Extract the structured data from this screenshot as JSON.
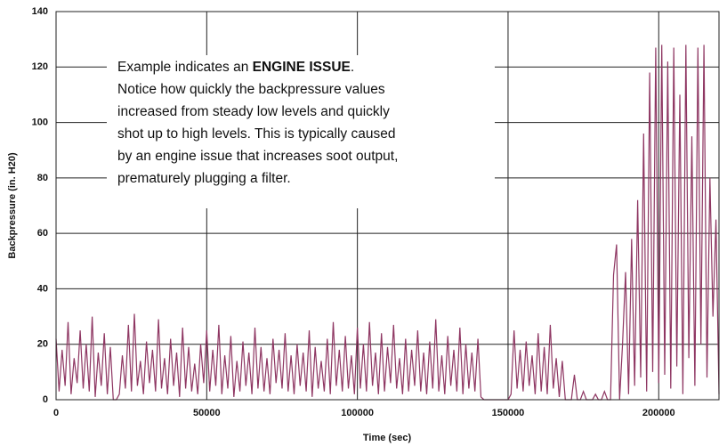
{
  "chart_data": {
    "type": "line",
    "x_label": "Time (sec)",
    "y_label": "Backpressure (in. H20)",
    "annotation": {
      "first_line": [
        "Example indicates an ",
        "ENGINE ISSUE",
        "."
      ],
      "lines": [
        "Notice how quickly the backpressure values",
        "increased from steady low levels and quickly",
        "shot up to high levels. This is typically caused",
        "by an engine issue that increases soot output,",
        "prematurely plugging a filter."
      ]
    },
    "color": "#8e3662",
    "xlim": [
      0,
      220000
    ],
    "ylim": [
      0,
      140
    ],
    "xticks": [
      0,
      50000,
      100000,
      150000,
      200000
    ],
    "yticks": [
      0,
      20,
      40,
      60,
      80,
      100,
      120,
      140
    ],
    "grid": true,
    "x": [
      0,
      1000,
      2000,
      3000,
      4000,
      5000,
      6000,
      7000,
      8000,
      9000,
      10000,
      11000,
      12000,
      13000,
      14000,
      15000,
      16000,
      17000,
      18000,
      19000,
      20000,
      21000,
      22000,
      23000,
      24000,
      25000,
      26000,
      27000,
      28000,
      29000,
      30000,
      31000,
      32000,
      33000,
      34000,
      35000,
      36000,
      37000,
      38000,
      39000,
      40000,
      41000,
      42000,
      43000,
      44000,
      45000,
      46000,
      47000,
      48000,
      49000,
      50000,
      51000,
      52000,
      53000,
      54000,
      55000,
      56000,
      57000,
      58000,
      59000,
      60000,
      61000,
      62000,
      63000,
      64000,
      65000,
      66000,
      67000,
      68000,
      69000,
      70000,
      71000,
      72000,
      73000,
      74000,
      75000,
      76000,
      77000,
      78000,
      79000,
      80000,
      81000,
      82000,
      83000,
      84000,
      85000,
      86000,
      87000,
      88000,
      89000,
      90000,
      91000,
      92000,
      93000,
      94000,
      95000,
      96000,
      97000,
      98000,
      99000,
      100000,
      101000,
      102000,
      103000,
      104000,
      105000,
      106000,
      107000,
      108000,
      109000,
      110000,
      111000,
      112000,
      113000,
      114000,
      115000,
      116000,
      117000,
      118000,
      119000,
      120000,
      121000,
      122000,
      123000,
      124000,
      125000,
      126000,
      127000,
      128000,
      129000,
      130000,
      131000,
      132000,
      133000,
      134000,
      135000,
      136000,
      137000,
      138000,
      139000,
      140000,
      141000,
      142000,
      143000,
      144000,
      145000,
      146000,
      147000,
      148000,
      149000,
      150000,
      151000,
      152000,
      153000,
      154000,
      155000,
      156000,
      157000,
      158000,
      159000,
      160000,
      161000,
      162000,
      163000,
      164000,
      165000,
      166000,
      167000,
      168000,
      169000,
      170000,
      171000,
      172000,
      173000,
      174000,
      175000,
      176000,
      177000,
      178000,
      179000,
      180000,
      181000,
      182000,
      183000,
      184000,
      185000,
      186000,
      187000,
      188000,
      189000,
      190000,
      191000,
      192000,
      193000,
      194000,
      195000,
      196000,
      197000,
      198000,
      199000,
      200000,
      201000,
      202000,
      203000,
      204000,
      205000,
      206000,
      207000,
      208000,
      209000,
      210000,
      211000,
      212000,
      213000,
      214000,
      215000,
      216000,
      217000,
      218000,
      219000,
      220000
    ],
    "values": [
      22,
      3,
      18,
      5,
      28,
      2,
      15,
      6,
      25,
      4,
      20,
      3,
      30,
      1,
      17,
      5,
      24,
      2,
      19,
      0,
      0,
      2,
      16,
      4,
      27,
      3,
      31,
      5,
      14,
      2,
      21,
      6,
      18,
      3,
      29,
      4,
      15,
      2,
      22,
      5,
      17,
      1,
      26,
      4,
      19,
      3,
      13,
      2,
      20,
      6,
      25,
      3,
      18,
      5,
      27,
      2,
      16,
      4,
      23,
      1,
      14,
      3,
      21,
      5,
      17,
      2,
      26,
      4,
      19,
      3,
      15,
      2,
      22,
      6,
      18,
      4,
      24,
      3,
      16,
      2,
      20,
      5,
      17,
      3,
      25,
      1,
      19,
      4,
      14,
      3,
      22,
      2,
      28,
      5,
      18,
      3,
      23,
      4,
      16,
      2,
      26,
      4,
      20,
      3,
      28,
      5,
      17,
      2,
      24,
      3,
      19,
      6,
      27,
      4,
      15,
      2,
      22,
      3,
      18,
      5,
      25,
      3,
      17,
      2,
      21,
      4,
      29,
      3,
      16,
      2,
      23,
      5,
      18,
      3,
      26,
      2,
      20,
      4,
      17,
      3,
      22,
      1,
      0,
      0,
      0,
      0,
      0,
      0,
      0,
      0,
      0,
      2,
      25,
      4,
      18,
      3,
      21,
      5,
      16,
      2,
      24,
      3,
      19,
      2,
      27,
      4,
      15,
      1,
      14,
      0,
      0,
      0,
      9,
      0,
      0,
      3,
      0,
      0,
      0,
      2,
      0,
      0,
      3,
      0,
      0,
      45,
      56,
      0,
      20,
      46,
      2,
      58,
      5,
      72,
      8,
      96,
      3,
      118,
      10,
      127,
      6,
      128,
      9,
      122,
      4,
      127,
      12,
      110,
      2,
      128,
      15,
      95,
      5,
      127,
      20,
      128,
      8,
      80,
      30,
      65,
      2
    ]
  }
}
